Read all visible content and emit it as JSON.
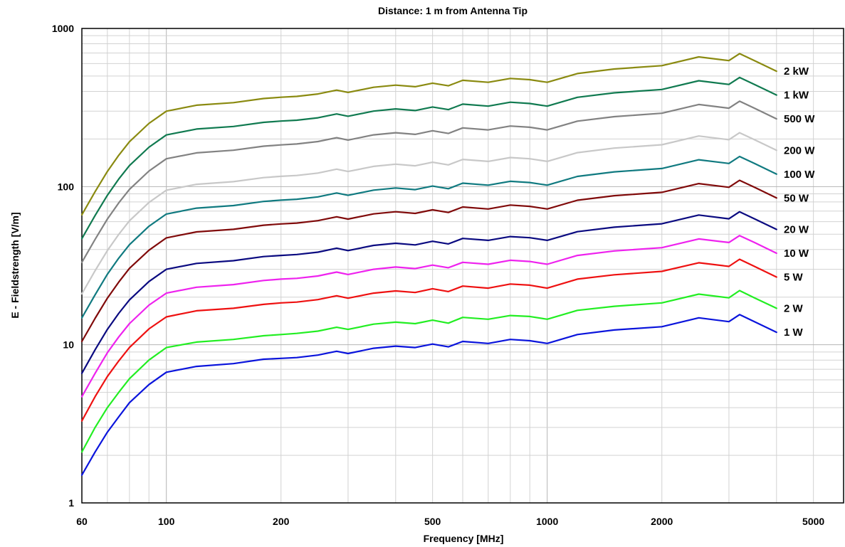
{
  "chart_data": {
    "type": "line",
    "title": "Distance: 1 m from Antenna Tip",
    "xlabel": "Frequency [MHz]",
    "ylabel": "E - Fieldstrength [V/m]",
    "x_scale": "log",
    "y_scale": "log",
    "xlim": [
      60,
      6000
    ],
    "ylim": [
      1,
      1000
    ],
    "x_ticks": [
      60,
      100,
      200,
      500,
      1000,
      2000,
      5000
    ],
    "y_ticks": [
      1,
      10,
      100,
      1000
    ],
    "grid": true,
    "legend": "inline labels at right end of each curve",
    "x": [
      60,
      65,
      70,
      75,
      80,
      90,
      100,
      120,
      150,
      180,
      200,
      220,
      250,
      280,
      300,
      350,
      400,
      450,
      500,
      550,
      600,
      700,
      800,
      900,
      1000,
      1200,
      1500,
      2000,
      2500,
      3000,
      3200,
      3500,
      4000
    ],
    "series": [
      {
        "name": "1 W",
        "color": "#0a14dc",
        "values": [
          1.5,
          2.1,
          2.8,
          3.5,
          4.3,
          5.6,
          6.7,
          7.3,
          7.6,
          8.1,
          8.2,
          8.3,
          8.6,
          9.1,
          8.8,
          9.5,
          9.8,
          9.6,
          10.1,
          9.7,
          10.5,
          10.2,
          10.8,
          10.6,
          10.2,
          11.6,
          12.4,
          13.0,
          14.8,
          14.0,
          15.5,
          14.0,
          12.0
        ]
      },
      {
        "name": "2 W",
        "color": "#22ee22",
        "values": [
          2.1,
          3.0,
          4.0,
          5.0,
          6.1,
          8.0,
          9.6,
          10.4,
          10.8,
          11.4,
          11.6,
          11.8,
          12.2,
          12.9,
          12.5,
          13.5,
          13.9,
          13.6,
          14.3,
          13.7,
          14.9,
          14.5,
          15.3,
          15.1,
          14.5,
          16.5,
          17.5,
          18.4,
          20.9,
          19.8,
          22.0,
          19.8,
          17.0
        ]
      },
      {
        "name": "5 W",
        "color": "#ee1111",
        "values": [
          3.3,
          4.7,
          6.3,
          7.9,
          9.6,
          12.6,
          15.0,
          16.4,
          17.0,
          18.0,
          18.4,
          18.6,
          19.3,
          20.4,
          19.7,
          21.2,
          21.9,
          21.4,
          22.6,
          21.7,
          23.5,
          22.8,
          24.2,
          23.8,
          22.8,
          26.0,
          27.7,
          29.1,
          33.0,
          31.3,
          34.7,
          31.3,
          26.8
        ]
      },
      {
        "name": "10 W",
        "color": "#ee22ee",
        "values": [
          4.7,
          6.6,
          8.9,
          11.2,
          13.6,
          17.8,
          21.2,
          23.1,
          24.0,
          25.5,
          26.0,
          26.3,
          27.2,
          28.8,
          27.8,
          30.0,
          31.0,
          30.3,
          31.9,
          30.7,
          33.2,
          32.3,
          34.2,
          33.6,
          32.3,
          36.7,
          39.2,
          41.1,
          46.7,
          44.3,
          49.0,
          44.3,
          37.9
        ]
      },
      {
        "name": "20 W",
        "color": "#0a0a80",
        "values": [
          6.6,
          9.3,
          12.5,
          15.8,
          19.2,
          25.1,
          30.0,
          32.7,
          34.0,
          36.1,
          36.7,
          37.2,
          38.5,
          40.8,
          39.4,
          42.5,
          43.8,
          42.8,
          45.1,
          43.4,
          47.0,
          45.7,
          48.3,
          47.5,
          45.7,
          51.9,
          55.4,
          58.2,
          66.1,
          62.6,
          69.3,
          62.6,
          53.6
        ]
      },
      {
        "name": "50 W",
        "color": "#800a0a",
        "values": [
          10.5,
          14.7,
          19.7,
          24.9,
          30.4,
          39.6,
          47.4,
          51.7,
          53.7,
          57.0,
          58.1,
          58.8,
          60.9,
          64.4,
          62.3,
          67.2,
          69.3,
          67.7,
          71.3,
          68.6,
          74.3,
          72.2,
          76.4,
          75.0,
          72.2,
          82.0,
          87.6,
          92.0,
          104.5,
          99.0,
          109.6,
          99.0,
          84.8
        ]
      },
      {
        "name": "100 W",
        "color": "#107a80",
        "values": [
          14.8,
          20.7,
          27.9,
          35.3,
          42.9,
          56.1,
          67.1,
          73.1,
          75.9,
          80.6,
          82.1,
          83.2,
          86.1,
          91.1,
          88.1,
          95.0,
          98.0,
          95.7,
          100.8,
          97.0,
          105.1,
          102.1,
          108.0,
          106.1,
          102.1,
          116.0,
          123.9,
          130.1,
          147.8,
          140.0,
          155.0,
          140.0,
          119.9
        ]
      },
      {
        "name": "200 W",
        "color": "#c8c8c8",
        "values": [
          21.0,
          29.4,
          39.4,
          49.9,
          60.8,
          79.3,
          94.9,
          103.4,
          107.4,
          114.0,
          116.1,
          117.6,
          121.8,
          128.9,
          124.6,
          134.3,
          138.6,
          135.4,
          142.6,
          137.2,
          148.6,
          144.4,
          152.7,
          150.0,
          144.4,
          164.0,
          175.2,
          184.0,
          209.0,
          198.0,
          219.2,
          198.0,
          169.6
        ]
      },
      {
        "name": "500 W",
        "color": "#828282",
        "values": [
          33.2,
          46.4,
          62.3,
          78.9,
          96.0,
          125.4,
          150.0,
          163.5,
          169.8,
          180.2,
          183.6,
          186.0,
          192.6,
          203.7,
          197.0,
          212.4,
          219.1,
          214.0,
          225.5,
          216.9,
          235.0,
          228.3,
          241.5,
          237.2,
          228.3,
          259.3,
          277.0,
          290.9,
          330.5,
          313.1,
          346.5,
          313.1,
          268.2
        ]
      },
      {
        "name": "1 kW",
        "color": "#107a50",
        "values": [
          46.9,
          65.7,
          88.1,
          111.6,
          135.8,
          177.3,
          212.1,
          231.2,
          240.1,
          254.8,
          259.6,
          263.0,
          272.3,
          288.1,
          278.6,
          300.3,
          309.8,
          302.7,
          318.9,
          306.7,
          332.3,
          322.9,
          341.5,
          335.4,
          322.9,
          366.8,
          391.7,
          411.4,
          467.3,
          442.7,
          490.0,
          442.7,
          379.2
        ]
      },
      {
        "name": "2 kW",
        "color": "#8a8a10",
        "values": [
          66.4,
          92.9,
          124.6,
          157.8,
          192.0,
          250.8,
          300.0,
          327.0,
          339.6,
          360.4,
          367.2,
          372.0,
          385.2,
          407.4,
          394.0,
          424.8,
          438.2,
          428.0,
          451.0,
          433.8,
          470.0,
          456.6,
          483.0,
          474.4,
          456.6,
          518.6,
          554.0,
          581.8,
          661.0,
          626.2,
          693.0,
          626.2,
          536.4
        ]
      }
    ]
  }
}
